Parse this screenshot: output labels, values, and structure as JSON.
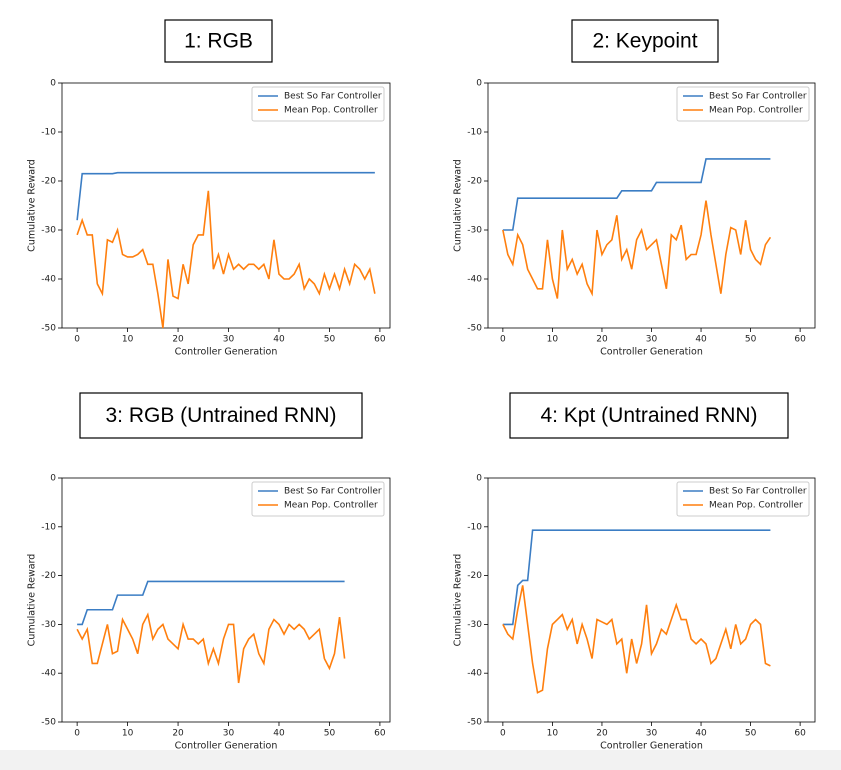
{
  "chart_data": [
    {
      "type": "line",
      "title": "1: RGB",
      "x_label": "Controller Generation",
      "y_label": "Cumulative Reward",
      "xlim": [
        -3,
        62
      ],
      "ylim": [
        -50,
        0
      ],
      "xticks": [
        0,
        10,
        20,
        30,
        40,
        50,
        60
      ],
      "yticks": [
        0,
        -10,
        -20,
        -30,
        -40,
        -50
      ],
      "legend": "upper right",
      "x": [
        0,
        1,
        2,
        3,
        4,
        5,
        6,
        7,
        8,
        9,
        10,
        11,
        12,
        13,
        14,
        15,
        16,
        17,
        18,
        19,
        20,
        21,
        22,
        23,
        24,
        25,
        26,
        27,
        28,
        29,
        30,
        31,
        32,
        33,
        34,
        35,
        36,
        37,
        38,
        39,
        40,
        41,
        42,
        43,
        44,
        45,
        46,
        47,
        48,
        49,
        50,
        51,
        52,
        53,
        54,
        55,
        56,
        57,
        58,
        59
      ],
      "series": [
        {
          "name": "Best So Far Controller",
          "color": "#3b7dc4",
          "values": [
            -28,
            -18.5,
            -18.5,
            -18.5,
            -18.5,
            -18.5,
            -18.5,
            -18.5,
            -18.3,
            -18.3,
            -18.3,
            -18.3,
            -18.3,
            -18.3,
            -18.3,
            -18.3,
            -18.3,
            -18.3,
            -18.3,
            -18.3,
            -18.3,
            -18.3,
            -18.3,
            -18.3,
            -18.3,
            -18.3,
            -18.3,
            -18.3,
            -18.3,
            -18.3,
            -18.3,
            -18.3,
            -18.3,
            -18.3,
            -18.3,
            -18.3,
            -18.3,
            -18.3,
            -18.3,
            -18.3,
            -18.3,
            -18.3,
            -18.3,
            -18.3,
            -18.3,
            -18.3,
            -18.3,
            -18.3,
            -18.3,
            -18.3,
            -18.3,
            -18.3,
            -18.3,
            -18.3,
            -18.3,
            -18.3,
            -18.3,
            -18.3,
            -18.3,
            -18.3
          ]
        },
        {
          "name": "Mean Pop. Controller",
          "color": "#ff7f0e",
          "values": [
            -31,
            -28,
            -31,
            -31,
            -41,
            -43,
            -32,
            -32.5,
            -30,
            -35,
            -35.5,
            -35.5,
            -35,
            -34,
            -37,
            -37,
            -43,
            -50,
            -36,
            -43.5,
            -44,
            -37,
            -41,
            -33,
            -31,
            -31,
            -22,
            -38,
            -35,
            -39,
            -35,
            -38,
            -37,
            -38,
            -37,
            -37,
            -38,
            -37,
            -40,
            -32,
            -39,
            -40,
            -40,
            -39,
            -37,
            -42,
            -40,
            -41,
            -43,
            -39,
            -42,
            -39,
            -42,
            -38,
            -41,
            -37,
            -38,
            -40,
            -38,
            -43
          ]
        }
      ]
    },
    {
      "type": "line",
      "title": "2: Keypoint",
      "x_label": "Controller Generation",
      "y_label": "Cumulative Reward",
      "xlim": [
        -3,
        63
      ],
      "ylim": [
        -50,
        0
      ],
      "xticks": [
        0,
        10,
        20,
        30,
        40,
        50,
        60
      ],
      "yticks": [
        0,
        -10,
        -20,
        -30,
        -40,
        -50
      ],
      "legend": "upper right",
      "x": [
        0,
        1,
        2,
        3,
        4,
        5,
        6,
        7,
        8,
        9,
        10,
        11,
        12,
        13,
        14,
        15,
        16,
        17,
        18,
        19,
        20,
        21,
        22,
        23,
        24,
        25,
        26,
        27,
        28,
        29,
        30,
        31,
        32,
        33,
        34,
        35,
        36,
        37,
        38,
        39,
        40,
        41,
        42,
        43,
        44,
        45,
        46,
        47,
        48,
        49,
        50,
        51,
        52,
        53,
        54
      ],
      "series": [
        {
          "name": "Best So Far Controller",
          "color": "#3b7dc4",
          "values": [
            -30,
            -30,
            -30,
            -23.5,
            -23.5,
            -23.5,
            -23.5,
            -23.5,
            -23.5,
            -23.5,
            -23.5,
            -23.5,
            -23.5,
            -23.5,
            -23.5,
            -23.5,
            -23.5,
            -23.5,
            -23.5,
            -23.5,
            -23.5,
            -23.5,
            -23.5,
            -23.5,
            -22,
            -22,
            -22,
            -22,
            -22,
            -22,
            -22,
            -20.3,
            -20.3,
            -20.3,
            -20.3,
            -20.3,
            -20.3,
            -20.3,
            -20.3,
            -20.3,
            -20.3,
            -15.5,
            -15.5,
            -15.5,
            -15.5,
            -15.5,
            -15.5,
            -15.5,
            -15.5,
            -15.5,
            -15.5,
            -15.5,
            -15.5,
            -15.5,
            -15.5
          ]
        },
        {
          "name": "Mean Pop. Controller",
          "color": "#ff7f0e",
          "values": [
            -30,
            -35,
            -37,
            -31,
            -33,
            -38,
            -40,
            -42,
            -42,
            -32,
            -40,
            -44,
            -30,
            -38,
            -36,
            -39,
            -37,
            -41,
            -43,
            -30,
            -35,
            -33,
            -32,
            -27,
            -36,
            -34,
            -38,
            -32,
            -30,
            -34,
            -33,
            -32,
            -37,
            -42,
            -31,
            -32,
            -29,
            -36,
            -35,
            -35,
            -31,
            -24,
            -31,
            -37,
            -43,
            -35,
            -29.5,
            -30,
            -35,
            -28,
            -34,
            -36,
            -37,
            -33,
            -31.5
          ]
        }
      ]
    },
    {
      "type": "line",
      "title": "3: RGB (Untrained RNN)",
      "x_label": "Controller Generation",
      "y_label": "Cumulative Reward",
      "xlim": [
        -3,
        62
      ],
      "ylim": [
        -50,
        0
      ],
      "xticks": [
        0,
        10,
        20,
        30,
        40,
        50,
        60
      ],
      "yticks": [
        0,
        -10,
        -20,
        -30,
        -40,
        -50
      ],
      "legend": "upper right",
      "x": [
        0,
        1,
        2,
        3,
        4,
        5,
        6,
        7,
        8,
        9,
        10,
        11,
        12,
        13,
        14,
        15,
        16,
        17,
        18,
        19,
        20,
        21,
        22,
        23,
        24,
        25,
        26,
        27,
        28,
        29,
        30,
        31,
        32,
        33,
        34,
        35,
        36,
        37,
        38,
        39,
        40,
        41,
        42,
        43,
        44,
        45,
        46,
        47,
        48,
        49,
        50,
        51,
        52,
        53
      ],
      "series": [
        {
          "name": "Best So Far Controller",
          "color": "#3b7dc4",
          "values": [
            -30,
            -30,
            -27,
            -27,
            -27,
            -27,
            -27,
            -27,
            -24,
            -24,
            -24,
            -24,
            -24,
            -24,
            -21.2,
            -21.2,
            -21.2,
            -21.2,
            -21.2,
            -21.2,
            -21.2,
            -21.2,
            -21.2,
            -21.2,
            -21.2,
            -21.2,
            -21.2,
            -21.2,
            -21.2,
            -21.2,
            -21.2,
            -21.2,
            -21.2,
            -21.2,
            -21.2,
            -21.2,
            -21.2,
            -21.2,
            -21.2,
            -21.2,
            -21.2,
            -21.2,
            -21.2,
            -21.2,
            -21.2,
            -21.2,
            -21.2,
            -21.2,
            -21.2,
            -21.2,
            -21.2,
            -21.2,
            -21.2,
            -21.2
          ]
        },
        {
          "name": "Mean Pop. Controller",
          "color": "#ff7f0e",
          "values": [
            -31,
            -33,
            -31,
            -38,
            -38,
            -34,
            -30,
            -36,
            -35.5,
            -29,
            -31,
            -33,
            -36,
            -30,
            -28,
            -33,
            -31,
            -30,
            -33,
            -34,
            -35,
            -30,
            -33,
            -33,
            -34,
            -33,
            -38,
            -35,
            -38,
            -33,
            -30,
            -30,
            -42,
            -35,
            -33,
            -32,
            -36,
            -38,
            -31,
            -29,
            -30,
            -32,
            -30,
            -31,
            -30,
            -31,
            -33,
            -32,
            -31,
            -37,
            -39,
            -36,
            -28.5,
            -37
          ]
        }
      ]
    },
    {
      "type": "line",
      "title": "4: Kpt (Untrained RNN)",
      "x_label": "Controller Generation",
      "y_label": "Cumulative Reward",
      "xlim": [
        -3,
        63
      ],
      "ylim": [
        -50,
        0
      ],
      "xticks": [
        0,
        10,
        20,
        30,
        40,
        50,
        60
      ],
      "yticks": [
        0,
        -10,
        -20,
        -30,
        -40,
        -50
      ],
      "legend": "upper right",
      "x": [
        0,
        1,
        2,
        3,
        4,
        5,
        6,
        7,
        8,
        9,
        10,
        11,
        12,
        13,
        14,
        15,
        16,
        17,
        18,
        19,
        20,
        21,
        22,
        23,
        24,
        25,
        26,
        27,
        28,
        29,
        30,
        31,
        32,
        33,
        34,
        35,
        36,
        37,
        38,
        39,
        40,
        41,
        42,
        43,
        44,
        45,
        46,
        47,
        48,
        49,
        50,
        51,
        52,
        53,
        54
      ],
      "series": [
        {
          "name": "Best So Far Controller",
          "color": "#3b7dc4",
          "values": [
            -30,
            -30,
            -30,
            -22,
            -21,
            -21,
            -10.7,
            -10.7,
            -10.7,
            -10.7,
            -10.7,
            -10.7,
            -10.7,
            -10.7,
            -10.7,
            -10.7,
            -10.7,
            -10.7,
            -10.7,
            -10.7,
            -10.7,
            -10.7,
            -10.7,
            -10.7,
            -10.7,
            -10.7,
            -10.7,
            -10.7,
            -10.7,
            -10.7,
            -10.7,
            -10.7,
            -10.7,
            -10.7,
            -10.7,
            -10.7,
            -10.7,
            -10.7,
            -10.7,
            -10.7,
            -10.7,
            -10.7,
            -10.7,
            -10.7,
            -10.7,
            -10.7,
            -10.7,
            -10.7,
            -10.7,
            -10.7,
            -10.7,
            -10.7,
            -10.7,
            -10.7,
            -10.7
          ]
        },
        {
          "name": "Mean Pop. Controller",
          "color": "#ff7f0e",
          "values": [
            -30,
            -32,
            -33,
            -27,
            -22,
            -30,
            -38,
            -44,
            -43.5,
            -35,
            -30,
            -29,
            -28,
            -31,
            -29,
            -34,
            -30,
            -33,
            -37,
            -29,
            -29.5,
            -30,
            -29,
            -34,
            -33,
            -40,
            -33,
            -38,
            -34,
            -26,
            -36,
            -34,
            -31,
            -32,
            -29,
            -26,
            -29,
            -29,
            -33,
            -34,
            -33,
            -34,
            -38,
            -37,
            -34,
            -31,
            -35,
            -30,
            -34,
            -33,
            -30,
            -29,
            -30,
            -38,
            -38.5
          ]
        }
      ]
    }
  ]
}
